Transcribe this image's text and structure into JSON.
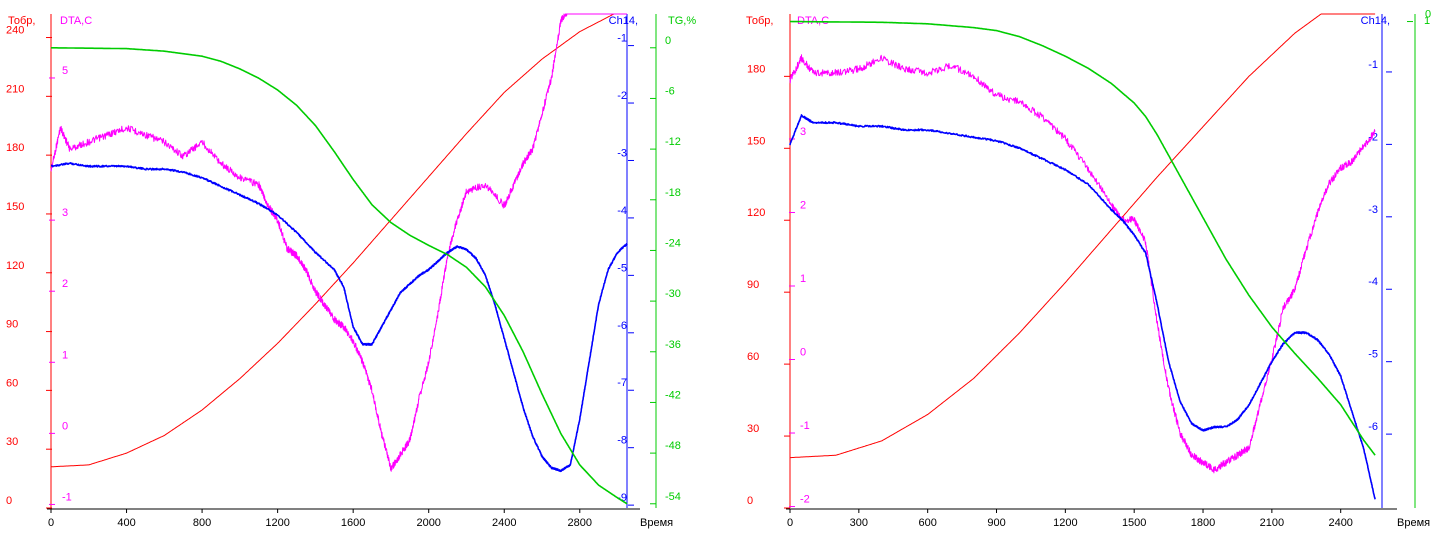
{
  "colors": {
    "temperature": "#ff0000",
    "dta": "#ff00ff",
    "ch14": "#0000ff",
    "tg": "#00cc00",
    "axis_time": "#000000"
  },
  "chart_data": [
    {
      "type": "line",
      "xlabel": "Время",
      "xlim": [
        0,
        3050
      ],
      "x_ticks": [
        "0",
        "400",
        "800",
        "1200",
        "1600",
        "2000",
        "2400",
        "2800"
      ],
      "axes": {
        "temperature": {
          "label": "Тобр,",
          "lim": [
            0,
            252
          ],
          "ticks": [
            "0",
            "30",
            "60",
            "90",
            "120",
            "150",
            "180",
            "210",
            "240"
          ]
        },
        "dta": {
          "label": "DTA,C",
          "lim": [
            -1.05,
            5.9
          ],
          "ticks": [
            "-1",
            "0",
            "1",
            "2",
            "3",
            "5"
          ]
        },
        "ch14": {
          "label": "Ch14,",
          "lim": [
            -9.05,
            -0.45
          ],
          "ticks": [
            "-1",
            "-2",
            "-3",
            "-4",
            "-5",
            "-6",
            "-7",
            "-8",
            "-9"
          ]
        },
        "tg": {
          "label": "TG,%",
          "lim": [
            -54.5,
            4
          ],
          "ticks": [
            "0",
            "-6",
            "-12",
            "-18",
            "-24",
            "-30",
            "-36",
            "-42",
            "-48",
            "-54"
          ]
        }
      },
      "series": [
        {
          "key": "temperature",
          "x": [
            0,
            200,
            400,
            600,
            800,
            1000,
            1200,
            1400,
            1600,
            1800,
            2000,
            2200,
            2400,
            2600,
            2800,
            3000,
            3050
          ],
          "y": [
            21,
            22,
            28,
            37,
            50,
            66,
            84,
            104,
            125,
            147,
            169,
            191,
            212,
            229,
            243,
            253,
            255
          ]
        },
        {
          "key": "dta",
          "x": [
            0,
            50,
            100,
            200,
            300,
            400,
            500,
            600,
            700,
            800,
            900,
            1000,
            1100,
            1150,
            1200,
            1250,
            1300,
            1350,
            1400,
            1450,
            1500,
            1550,
            1600,
            1650,
            1700,
            1750,
            1800,
            1850,
            1900,
            1950,
            2000,
            2050,
            2100,
            2150,
            2200,
            2300,
            2400,
            2450,
            2500,
            2550,
            2600,
            2650,
            2700,
            2750,
            2800,
            2850,
            2900,
            2950,
            3000,
            3050
          ],
          "y": [
            3.7,
            4.3,
            4.0,
            4.1,
            4.2,
            4.3,
            4.2,
            4.1,
            3.9,
            4.1,
            3.8,
            3.6,
            3.5,
            3.2,
            3.0,
            2.6,
            2.5,
            2.3,
            2.0,
            1.8,
            1.6,
            1.5,
            1.3,
            1.0,
            0.6,
            0.0,
            -0.5,
            -0.3,
            -0.1,
            0.5,
            1.0,
            1.7,
            2.5,
            3.0,
            3.4,
            3.5,
            3.2,
            3.5,
            3.8,
            4.0,
            4.5,
            5.0,
            5.8,
            6.0,
            6.2,
            6.5,
            7.0,
            6.9,
            6.6,
            6.7
          ]
        },
        {
          "key": "ch14",
          "x": [
            0,
            100,
            200,
            300,
            400,
            500,
            600,
            700,
            800,
            900,
            1000,
            1100,
            1200,
            1300,
            1400,
            1500,
            1550,
            1600,
            1650,
            1700,
            1750,
            1800,
            1850,
            1900,
            1950,
            2000,
            2050,
            2100,
            2150,
            2200,
            2250,
            2300,
            2350,
            2400,
            2450,
            2500,
            2550,
            2600,
            2650,
            2700,
            2750,
            2800,
            2850,
            2900,
            2950,
            3000,
            3050
          ],
          "y": [
            -3.1,
            -3.05,
            -3.1,
            -3.1,
            -3.1,
            -3.15,
            -3.15,
            -3.2,
            -3.3,
            -3.45,
            -3.6,
            -3.75,
            -3.95,
            -4.25,
            -4.6,
            -4.9,
            -5.2,
            -5.9,
            -6.2,
            -6.2,
            -5.9,
            -5.6,
            -5.3,
            -5.15,
            -5.0,
            -4.9,
            -4.75,
            -4.6,
            -4.5,
            -4.55,
            -4.7,
            -5.0,
            -5.5,
            -6.1,
            -6.7,
            -7.3,
            -7.8,
            -8.15,
            -8.35,
            -8.4,
            -8.3,
            -7.5,
            -6.5,
            -5.5,
            -4.9,
            -4.6,
            -4.45
          ]
        },
        {
          "key": "tg",
          "x": [
            0,
            400,
            600,
            800,
            900,
            1000,
            1100,
            1200,
            1300,
            1400,
            1500,
            1600,
            1700,
            1800,
            1900,
            2000,
            2100,
            2200,
            2300,
            2400,
            2500,
            2600,
            2700,
            2800,
            2900,
            3000,
            3050
          ],
          "y": [
            0,
            -0.1,
            -0.4,
            -1.0,
            -1.6,
            -2.5,
            -3.6,
            -5.0,
            -6.8,
            -9.2,
            -12.3,
            -15.6,
            -18.6,
            -20.7,
            -22.2,
            -23.4,
            -24.5,
            -26.0,
            -28.3,
            -31.7,
            -36.0,
            -41.0,
            -45.7,
            -49.4,
            -51.8,
            -53.3,
            -54.0
          ]
        }
      ]
    },
    {
      "type": "line",
      "xlabel": "Время",
      "xlim": [
        0,
        2580
      ],
      "x_ticks": [
        "0",
        "300",
        "600",
        "900",
        "1200",
        "1500",
        "1800",
        "2100",
        "2400"
      ],
      "axes": {
        "temperature": {
          "label": "Тобр,",
          "lim": [
            0,
            206
          ],
          "ticks": [
            "0",
            "30",
            "60",
            "90",
            "120",
            "150",
            "180"
          ]
        },
        "dta": {
          "label": "DTA,C",
          "lim": [
            -2.02,
            4.7
          ],
          "ticks": [
            "-2",
            "-1",
            "0",
            "1",
            "2",
            "3"
          ]
        },
        "ch14": {
          "label": "Ch14,",
          "lim": [
            -7.02,
            -0.2
          ],
          "ticks": [
            "-1",
            "-2",
            "-3",
            "-4",
            "-5",
            "-6"
          ]
        },
        "tg": {
          "label": "1",
          "lim": [
            -64.5,
            1
          ],
          "ticks": [
            "0"
          ]
        }
      },
      "series": [
        {
          "key": "temperature",
          "x": [
            0,
            200,
            400,
            600,
            800,
            1000,
            1200,
            1400,
            1600,
            1800,
            2000,
            2200,
            2400,
            2550
          ],
          "y": [
            21,
            22,
            28,
            39,
            54,
            73,
            94,
            116,
            138,
            159,
            180,
            198,
            212,
            220
          ]
        },
        {
          "key": "dta",
          "x": [
            0,
            50,
            100,
            200,
            300,
            400,
            500,
            600,
            700,
            800,
            900,
            1000,
            1100,
            1200,
            1300,
            1400,
            1450,
            1500,
            1550,
            1600,
            1650,
            1700,
            1750,
            1800,
            1850,
            1900,
            1950,
            2000,
            2050,
            2100,
            2150,
            2200,
            2250,
            2300,
            2350,
            2400,
            2450,
            2500,
            2550
          ],
          "y": [
            3.8,
            4.1,
            3.9,
            3.9,
            3.95,
            4.1,
            3.95,
            3.9,
            4.0,
            3.85,
            3.6,
            3.5,
            3.3,
            3.0,
            2.6,
            2.1,
            1.9,
            1.9,
            1.6,
            0.5,
            -0.4,
            -1.0,
            -1.3,
            -1.4,
            -1.5,
            -1.4,
            -1.3,
            -1.2,
            -0.6,
            0.0,
            0.7,
            0.95,
            1.5,
            2.0,
            2.4,
            2.6,
            2.7,
            2.9,
            3.1
          ]
        },
        {
          "key": "ch14",
          "x": [
            0,
            50,
            100,
            200,
            300,
            400,
            500,
            600,
            700,
            800,
            900,
            1000,
            1100,
            1200,
            1300,
            1400,
            1450,
            1500,
            1550,
            1600,
            1650,
            1700,
            1750,
            1800,
            1850,
            1900,
            1950,
            2000,
            2050,
            2100,
            2150,
            2200,
            2250,
            2300,
            2350,
            2400,
            2450,
            2500,
            2550
          ],
          "y": [
            -2.0,
            -1.6,
            -1.7,
            -1.7,
            -1.75,
            -1.75,
            -1.8,
            -1.8,
            -1.85,
            -1.9,
            -1.95,
            -2.05,
            -2.2,
            -2.35,
            -2.55,
            -2.9,
            -3.05,
            -3.25,
            -3.5,
            -4.2,
            -5.0,
            -5.55,
            -5.85,
            -5.95,
            -5.9,
            -5.9,
            -5.8,
            -5.6,
            -5.3,
            -5.0,
            -4.75,
            -4.6,
            -4.6,
            -4.7,
            -4.9,
            -5.2,
            -5.7,
            -6.2,
            -6.9
          ]
        },
        {
          "key": "tg",
          "x": [
            0,
            400,
            600,
            800,
            900,
            1000,
            1100,
            1200,
            1300,
            1400,
            1500,
            1550,
            1600,
            1700,
            1800,
            1900,
            2000,
            2100,
            2200,
            2300,
            2400,
            2500,
            2550
          ],
          "y": [
            0,
            -0.1,
            -0.3,
            -0.8,
            -1.2,
            -2.0,
            -3.2,
            -4.6,
            -6.2,
            -8.2,
            -10.8,
            -12.6,
            -15.0,
            -20.5,
            -26.0,
            -31.5,
            -36.3,
            -40.5,
            -44.0,
            -47.3,
            -50.8,
            -55.5,
            -57.5
          ]
        }
      ]
    }
  ]
}
